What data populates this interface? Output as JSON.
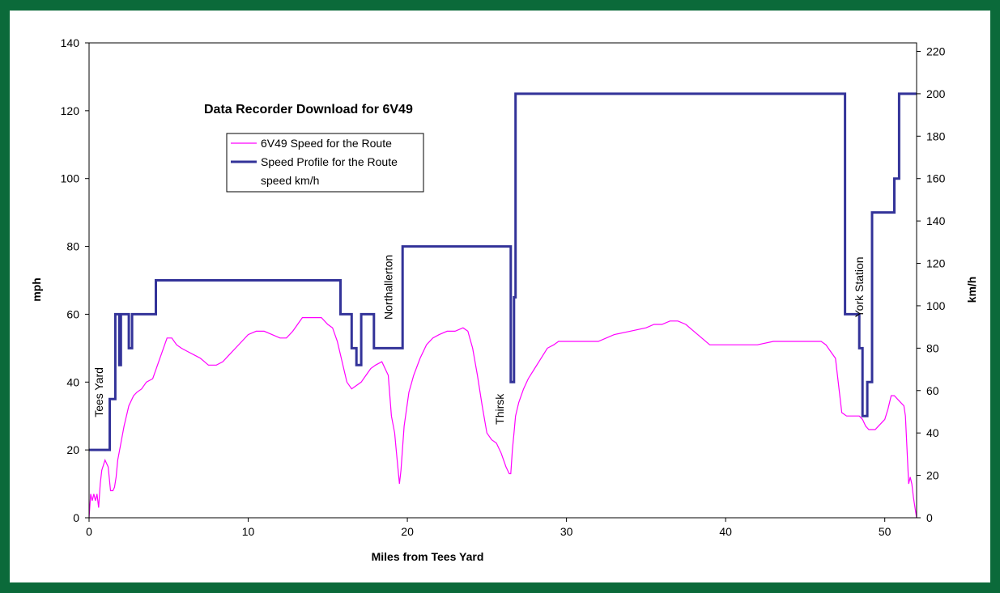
{
  "chart_data": {
    "type": "line",
    "title": "Data Recorder Download for 6V49",
    "xlabel": "Miles from Tees Yard",
    "ylabel": "mph",
    "y2label": "km/h",
    "xlim": [
      0,
      52
    ],
    "ylim": [
      0,
      140
    ],
    "y2lim": [
      0,
      224
    ],
    "xticks": [
      0,
      10,
      20,
      30,
      40,
      50
    ],
    "yticks": [
      0,
      20,
      40,
      60,
      80,
      100,
      120,
      140
    ],
    "y2ticks": [
      0,
      20,
      40,
      60,
      80,
      100,
      120,
      140,
      160,
      180,
      200,
      220
    ],
    "grid": false,
    "legend_position": "upper-left",
    "legend": [
      "6V49 Speed for the Route",
      "Speed Profile for the Route",
      "speed km/h"
    ],
    "colors": {
      "speed": "#ff00ff",
      "profile": "#333399"
    },
    "annotations": [
      {
        "text": "Tees Yard",
        "x": 0.6,
        "y": 37
      },
      {
        "text": "Northallerton",
        "x": 18.8,
        "y": 68
      },
      {
        "text": "Thirsk",
        "x": 25.8,
        "y": 32
      },
      {
        "text": "York Station",
        "x": 48.4,
        "y": 68
      }
    ],
    "series": [
      {
        "name": "6V49 Speed for the Route",
        "x": [
          0,
          0.1,
          0.2,
          0.3,
          0.4,
          0.5,
          0.6,
          0.7,
          0.8,
          1.0,
          1.2,
          1.35,
          1.5,
          1.6,
          1.7,
          1.8,
          2.0,
          2.2,
          2.5,
          2.8,
          3.0,
          3.3,
          3.6,
          4.0,
          4.3,
          4.6,
          4.9,
          5.2,
          5.5,
          5.8,
          6.2,
          6.6,
          7.0,
          7.5,
          8.0,
          8.4,
          8.8,
          9.2,
          9.6,
          10.0,
          10.5,
          11.0,
          11.5,
          12.0,
          12.4,
          12.8,
          13.1,
          13.4,
          13.8,
          14.2,
          14.6,
          15.0,
          15.3,
          15.6,
          15.9,
          16.2,
          16.5,
          16.8,
          17.1,
          17.4,
          17.7,
          18.0,
          18.4,
          18.8,
          19.0,
          19.2,
          19.3,
          19.4,
          19.5,
          19.6,
          19.8,
          20.1,
          20.4,
          20.8,
          21.2,
          21.6,
          22.0,
          22.5,
          23.0,
          23.5,
          23.8,
          24.1,
          24.4,
          24.7,
          25.0,
          25.3,
          25.6,
          25.9,
          26.2,
          26.4,
          26.5,
          26.6,
          26.7,
          26.8,
          27.0,
          27.3,
          27.6,
          28.0,
          28.4,
          28.8,
          29.2,
          29.5,
          30.0,
          31.0,
          32.0,
          33.0,
          34.0,
          35.0,
          35.5,
          36.0,
          36.5,
          37.0,
          37.5,
          38.0,
          38.5,
          39.0,
          39.5,
          40.0,
          41.0,
          42.0,
          43.0,
          44.0,
          45.0,
          45.5,
          46.0,
          46.3,
          46.6,
          46.9,
          47.1,
          47.3,
          47.6,
          48.0,
          48.2,
          48.4,
          48.6,
          48.8,
          49.0,
          49.2,
          49.4,
          49.6,
          49.8,
          50.0,
          50.2,
          50.4,
          50.6,
          50.8,
          51.0,
          51.2,
          51.3,
          51.4,
          51.5,
          51.6,
          51.7,
          51.8,
          51.9,
          52.0
        ],
        "values": [
          0,
          7,
          5,
          7,
          5,
          7,
          3,
          10,
          14,
          17,
          15,
          8,
          8,
          9,
          12,
          17,
          22,
          27,
          33,
          36,
          37,
          38,
          40,
          41,
          45,
          49,
          53,
          53,
          51,
          50,
          49,
          48,
          47,
          45,
          45,
          46,
          48,
          50,
          52,
          54,
          55,
          55,
          54,
          53,
          53,
          55,
          57,
          59,
          59,
          59,
          59,
          57,
          56,
          52,
          46,
          40,
          38,
          39,
          40,
          42,
          44,
          45,
          46,
          42,
          30,
          25,
          20,
          15,
          10,
          14,
          27,
          37,
          42,
          47,
          51,
          53,
          54,
          55,
          55,
          56,
          55,
          50,
          42,
          33,
          25,
          23,
          22,
          19,
          15,
          13,
          13,
          20,
          25,
          30,
          34,
          38,
          41,
          44,
          47,
          50,
          51,
          52,
          52,
          52,
          52,
          54,
          55,
          56,
          57,
          57,
          58,
          58,
          57,
          55,
          53,
          51,
          51,
          51,
          51,
          51,
          52,
          52,
          52,
          52,
          52,
          51,
          49,
          47,
          39,
          31,
          30,
          30,
          30,
          30,
          29,
          27,
          26,
          26,
          26,
          27,
          28,
          29,
          32,
          36,
          36,
          35,
          34,
          33,
          30,
          20,
          10,
          12,
          10,
          6,
          3,
          0
        ]
      },
      {
        "name": "Speed Profile for the Route",
        "x": [
          0,
          1.3,
          1.3,
          1.65,
          1.65,
          1.9,
          1.9,
          2.0,
          2.0,
          2.5,
          2.5,
          2.7,
          2.7,
          4.2,
          4.2,
          15.8,
          15.8,
          16.5,
          16.5,
          16.8,
          16.8,
          17.1,
          17.1,
          17.9,
          17.9,
          19.7,
          19.7,
          26.5,
          26.5,
          26.7,
          26.7,
          26.8,
          26.8,
          47.5,
          47.5,
          48.4,
          48.4,
          48.6,
          48.6,
          48.9,
          48.9,
          49.2,
          49.2,
          50.6,
          50.6,
          50.9,
          50.9,
          52.0
        ],
        "values": [
          20,
          20,
          35,
          35,
          60,
          60,
          45,
          45,
          60,
          60,
          50,
          50,
          60,
          60,
          70,
          70,
          60,
          60,
          50,
          50,
          45,
          45,
          60,
          60,
          50,
          50,
          80,
          80,
          40,
          40,
          65,
          65,
          125,
          125,
          60,
          60,
          50,
          50,
          30,
          30,
          40,
          40,
          90,
          90,
          100,
          100,
          125,
          125
        ]
      }
    ]
  }
}
